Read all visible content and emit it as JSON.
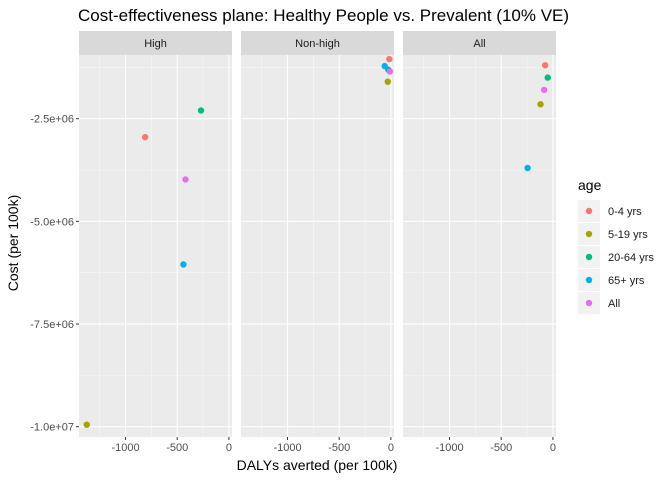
{
  "chart_data": {
    "type": "scatter",
    "title": "Cost-effectiveness plane: Healthy People vs. Prevalent (10% VE)",
    "xlabel": "DALYs averted (per 100k)",
    "ylabel": "Cost (per 100k)",
    "xlim": [
      -1450,
      30
    ],
    "ylim": [
      -10250000,
      -950000
    ],
    "x_ticks": [
      {
        "value": -1000,
        "label": "-1000"
      },
      {
        "value": -500,
        "label": "-500"
      },
      {
        "value": 0,
        "label": "0"
      }
    ],
    "y_ticks": [
      {
        "value": -2500000,
        "label": "-2.5e+06"
      },
      {
        "value": -5000000,
        "label": "-5.0e+06"
      },
      {
        "value": -7500000,
        "label": "-7.5e+06"
      },
      {
        "value": -10000000,
        "label": "-1.0e+07"
      }
    ],
    "grid": true,
    "legend": {
      "title": "age",
      "position": "right",
      "entries": [
        {
          "label": "0-4 yrs",
          "color": "#F8766D"
        },
        {
          "label": "5-19 yrs",
          "color": "#A3A500"
        },
        {
          "label": "20-64 yrs",
          "color": "#00BF7D"
        },
        {
          "label": "65+ yrs",
          "color": "#00B0F6"
        },
        {
          "label": "All",
          "color": "#E76BF3"
        }
      ]
    },
    "panels": [
      {
        "label": "High",
        "points": [
          {
            "group": "0-4 yrs",
            "x": -810,
            "y": -2950000
          },
          {
            "group": "5-19 yrs",
            "x": -1375,
            "y": -9950000
          },
          {
            "group": "20-64 yrs",
            "x": -270,
            "y": -2300000
          },
          {
            "group": "65+ yrs",
            "x": -440,
            "y": -6050000
          },
          {
            "group": "All",
            "x": -420,
            "y": -3980000
          }
        ]
      },
      {
        "label": "Non-high",
        "points": [
          {
            "group": "0-4 yrs",
            "x": -15,
            "y": -1050000
          },
          {
            "group": "5-19 yrs",
            "x": -30,
            "y": -1600000
          },
          {
            "group": "20-64 yrs",
            "x": -25,
            "y": -1310000
          },
          {
            "group": "65+ yrs",
            "x": -60,
            "y": -1220000
          },
          {
            "group": "All",
            "x": -10,
            "y": -1350000
          }
        ]
      },
      {
        "label": "All",
        "points": [
          {
            "group": "0-4 yrs",
            "x": -75,
            "y": -1200000
          },
          {
            "group": "5-19 yrs",
            "x": -120,
            "y": -2150000
          },
          {
            "group": "20-64 yrs",
            "x": -50,
            "y": -1500000
          },
          {
            "group": "65+ yrs",
            "x": -245,
            "y": -3700000
          },
          {
            "group": "All",
            "x": -85,
            "y": -1800000
          }
        ]
      }
    ]
  }
}
